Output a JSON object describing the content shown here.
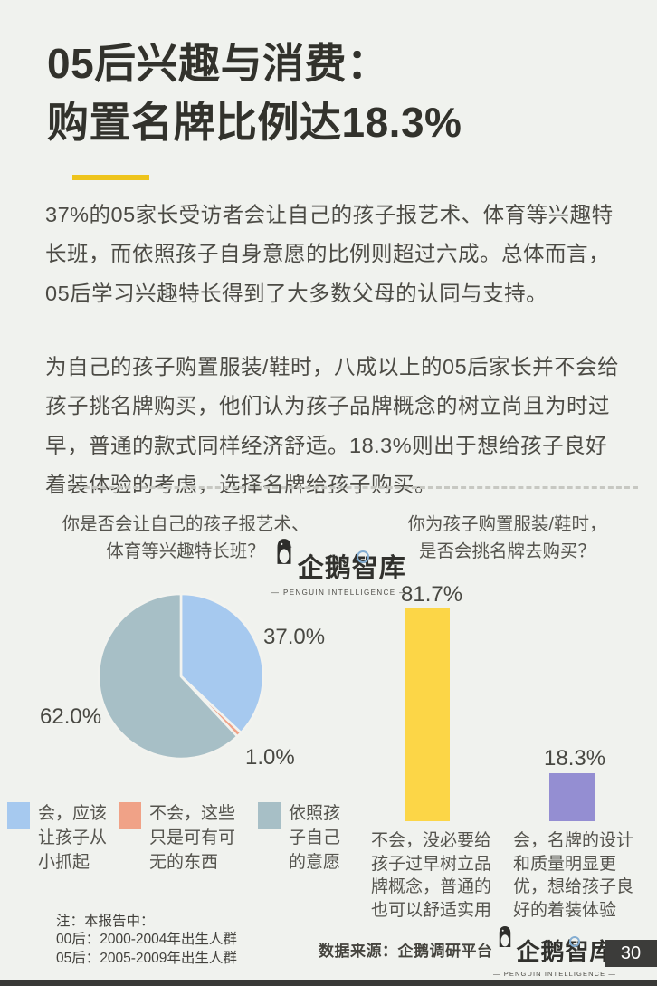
{
  "page": {
    "number": "30"
  },
  "header": {
    "title_line1": "05后兴趣与消费：",
    "title_line2": "购置名牌比例达18.3%"
  },
  "intro": {
    "p1": "37%的05家长受访者会让自己的孩子报艺术、体育等兴趣特长班，而依照孩子自身意愿的比例则超过六成。总体而言，05后学习兴趣特长得到了大多数父母的认同与支持。",
    "p2": "为自己的孩子购置服装/鞋时，八成以上的05后家长并不会给孩子挑名牌购买，他们认为孩子品牌概念的树立尚且为时过早，普通的款式同样经济舒适。18.3%则出于想给孩子良好着装体验的考虑，选择名牌给孩子购买。"
  },
  "brand": {
    "name": "企鹅智库",
    "tagline": "— PENGUIN INTELLIGENCE —"
  },
  "colors": {
    "background": "#f0f2ee",
    "accent_yellow": "#eec41c",
    "pie_blue": "#a6c9ef",
    "pie_salmon": "#f0a287",
    "pie_gray": "#a7bfc6",
    "bar_yellow": "#fcd647",
    "bar_purple": "#948ed2",
    "page_box": "#3c3c3a",
    "footer_bar": "#393937"
  },
  "chart_data": [
    {
      "type": "pie",
      "title": "你是否会让自己的孩子报艺术、体育等兴趣特长班？",
      "title_lines": [
        "你是否会让自己的孩子报艺术、",
        "体育等兴趣特长班？"
      ],
      "values": [
        37.0,
        1.0,
        62.0
      ],
      "value_labels": [
        "37.0%",
        "1.0%",
        "62.0%"
      ],
      "colors": [
        "#a6c9ef",
        "#f0a287",
        "#a7bfc6"
      ],
      "start_angle": "top",
      "direction": "clockwise",
      "legend_position": "below",
      "legend": [
        {
          "label": "会，应该让孩子从小抓起",
          "lines": [
            "会，应该",
            "让孩子从",
            "小抓起"
          ],
          "color": "#a6c9ef"
        },
        {
          "label": "不会，这些只是可有可无的东西",
          "lines": [
            "不会，这些",
            "只是可有可",
            "无的东西"
          ],
          "color": "#f0a287"
        },
        {
          "label": "依照孩子自己的意愿",
          "lines": [
            "依照孩",
            "子自己",
            "的意愿"
          ],
          "color": "#a7bfc6"
        }
      ]
    },
    {
      "type": "bar",
      "title": "你为孩子购置服装/鞋时，是否会挑名牌去购买？",
      "title_lines": [
        "你为孩子购置服装/鞋时，",
        "是否会挑名牌去购买？"
      ],
      "categories": [
        "不会，没必要给孩子过早树立品牌概念，普通的也可以舒适实用",
        "会，名牌的设计和质量明显更优，想给孩子良好的着装体验"
      ],
      "category_lines": [
        [
          "不会，没必要给",
          "孩子过早树立品",
          "牌概念，普通的",
          "也可以舒适实用"
        ],
        [
          "会，名牌的设计",
          "和质量明显更",
          "优，想给孩子良",
          "好的着装体验"
        ]
      ],
      "values": [
        81.7,
        18.3
      ],
      "value_labels": [
        "81.7%",
        "18.3%"
      ],
      "colors": [
        "#fcd647",
        "#948ed2"
      ],
      "ylim": [
        0,
        100
      ],
      "grid": false
    }
  ],
  "footer": {
    "note_line1": "注：本报告中：",
    "note_line2": "00后：2000-2004年出生人群",
    "note_line3": "05后：2005-2009年出生人群",
    "source": "数据来源：企鹅调研平台"
  }
}
